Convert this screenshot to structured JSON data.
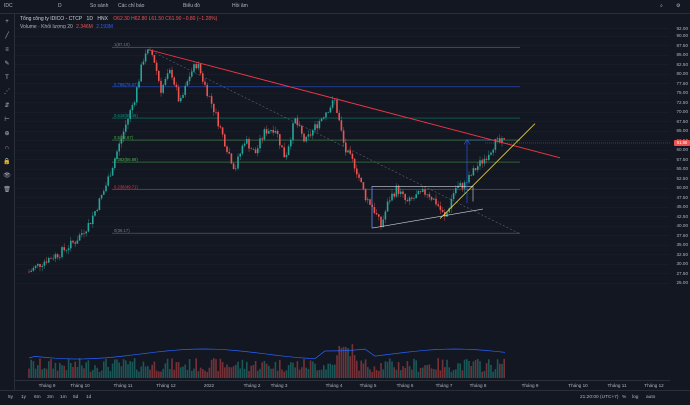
{
  "topbar": {
    "symbol": "IDC",
    "interval": "D",
    "compare": "So sánh",
    "indicators": "Các chỉ báo",
    "templates": "Biểu đồ",
    "alert": "Hồi âm"
  },
  "legend": {
    "title": "Tổng công ty IDICO - CTCP",
    "interval": "1D",
    "exchange": "HNX",
    "ohlc": "O62.30 H62.80 L61.50 C61.90 −0.80 (−1.28%)",
    "volume_label": "Volume · Khối lượng 20",
    "volume_val1": "2.346M",
    "volume_val2": "2.193M"
  },
  "fib_levels": [
    {
      "label": "1(87.10)",
      "price": 87.1,
      "color": "#787b86"
    },
    {
      "label": "0.786(76.67)",
      "price": 76.67,
      "color": "#2962ff"
    },
    {
      "label": "0.618(68.46)",
      "price": 68.46,
      "color": "#089981"
    },
    {
      "label": "0.5(62.67)",
      "price": 62.67,
      "color": "#4caf50"
    },
    {
      "label": "0.382(56.88)",
      "price": 56.88,
      "color": "#4caf50"
    },
    {
      "label": "0.236(49.71)",
      "price": 49.71,
      "color": "#f23645"
    },
    {
      "label": "0(38.17)",
      "price": 38.17,
      "color": "#787b86"
    }
  ],
  "price_scale": [
    "92.00",
    "90.00",
    "87.50",
    "85.00",
    "82.50",
    "80.00",
    "77.50",
    "75.00",
    "72.50",
    "70.00",
    "67.50",
    "65.00",
    "62.50",
    "60.00",
    "57.50",
    "55.00",
    "52.50",
    "50.00",
    "47.50",
    "45.00",
    "42.50",
    "40.00",
    "37.50",
    "35.00",
    "32.50",
    "30.00",
    "27.50",
    "25.00"
  ],
  "current_price": "61.90",
  "time_scale": [
    "Tháng 9",
    "Tháng 10",
    "Tháng 11",
    "Tháng 12",
    "2022",
    "Tháng 2",
    "Tháng 3",
    "Tháng 4",
    "Tháng 5",
    "Tháng 6",
    "Tháng 7",
    "Tháng 8",
    "Tháng 9",
    "Tháng 10",
    "Tháng 11",
    "Tháng 12"
  ],
  "bottombar": {
    "ranges": [
      "5y",
      "1y",
      "6m",
      "3m",
      "1m",
      "5d",
      "1d"
    ],
    "time": "21:20:00 (UTC+7)",
    "pct": "%",
    "log": "log",
    "auto": "auto"
  },
  "colors": {
    "up": "#26a69a",
    "down": "#ef5350",
    "bg": "#131722",
    "trend_red": "#f23645",
    "trend_yellow": "#f5e13a",
    "box": "#d1d4dc",
    "arrow": "#2962ff"
  },
  "icons": [
    "crosshair-icon",
    "trend-line-icon",
    "fib-icon",
    "brush-icon",
    "text-icon",
    "pattern-icon",
    "prediction-icon",
    "measure-icon",
    "zoom-icon",
    "magnet-icon",
    "lock-icon",
    "eye-icon",
    "trash-icon"
  ]
}
